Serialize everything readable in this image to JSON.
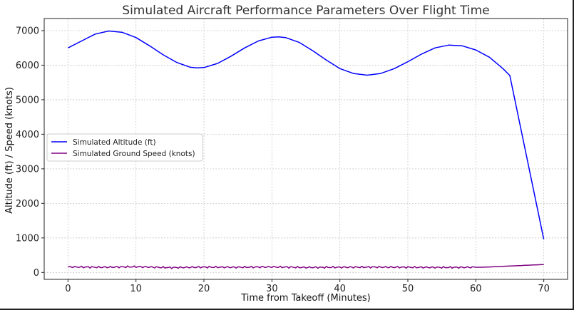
{
  "chart_data": {
    "type": "line",
    "title": "Simulated Aircraft Performance Parameters Over Flight Time",
    "xlabel": "Time from Takeoff (Minutes)",
    "ylabel": "Altitude (ft) / Speed (knots)",
    "xlim": [
      -3.5,
      73.5
    ],
    "ylim": [
      -200,
      7350
    ],
    "xticks": [
      0,
      10,
      20,
      30,
      40,
      50,
      60,
      70
    ],
    "yticks": [
      0,
      1000,
      2000,
      3000,
      4000,
      5000,
      6000,
      7000
    ],
    "grid": true,
    "legend_position": "center-left",
    "series": [
      {
        "name": "Simulated Altitude (ft)",
        "color": "#0000ff",
        "x": [
          0,
          2,
          4,
          6,
          8,
          10,
          12,
          14,
          16,
          18,
          19,
          20,
          22,
          24,
          26,
          28,
          30,
          31,
          32,
          34,
          36,
          38,
          40,
          42,
          44,
          46,
          48,
          50,
          52,
          54,
          56,
          58,
          60,
          62,
          64,
          65,
          70
        ],
        "y": [
          6500,
          6700,
          6900,
          6990,
          6950,
          6800,
          6560,
          6300,
          6080,
          5940,
          5920,
          5930,
          6050,
          6260,
          6500,
          6700,
          6810,
          6820,
          6800,
          6660,
          6420,
          6150,
          5900,
          5760,
          5710,
          5760,
          5900,
          6100,
          6320,
          6500,
          6580,
          6560,
          6440,
          6230,
          5900,
          5700,
          960
        ]
      },
      {
        "name": "Simulated Ground Speed (knots)",
        "color": "#800080",
        "x": [
          0,
          5,
          10,
          15,
          20,
          25,
          30,
          35,
          40,
          45,
          50,
          55,
          60,
          61,
          70
        ],
        "y": [
          160,
          150,
          165,
          140,
          155,
          150,
          160,
          145,
          150,
          155,
          150,
          145,
          150,
          150,
          230
        ]
      }
    ]
  }
}
